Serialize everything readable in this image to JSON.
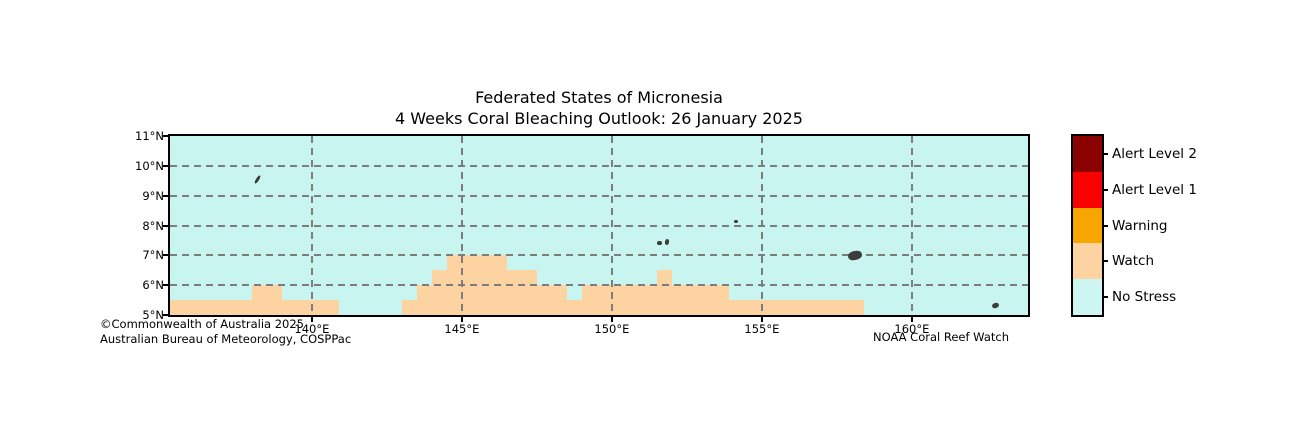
{
  "title": {
    "line1": "Federated States of Micronesia",
    "line2": "4 Weeks Coral Bleaching Outlook: 26 January 2025"
  },
  "credits": {
    "left_line1": "©Commonwealth of Australia 2025",
    "left_line2": "Australian Bureau of Meteorology, COSPPac",
    "right": "NOAA Coral Reef Watch"
  },
  "legend": {
    "items": [
      {
        "label": "Alert Level 2",
        "color": "#8b0000"
      },
      {
        "label": "Alert Level 1",
        "color": "#fa0000"
      },
      {
        "label": "Warning",
        "color": "#f7a600"
      },
      {
        "label": "Watch",
        "color": "#fcd3a1"
      },
      {
        "label": "No Stress",
        "color": "#cdf5f2"
      }
    ]
  },
  "map": {
    "y_ticks": [
      {
        "label": "11°N",
        "lat": 11
      },
      {
        "label": "10°N",
        "lat": 10
      },
      {
        "label": "9°N",
        "lat": 9
      },
      {
        "label": "8°N",
        "lat": 8
      },
      {
        "label": "7°N",
        "lat": 7
      },
      {
        "label": "6°N",
        "lat": 6
      },
      {
        "label": "5°N",
        "lat": 5
      }
    ],
    "x_ticks": [
      {
        "label": "140°E",
        "lon": 140
      },
      {
        "label": "145°E",
        "lon": 145
      },
      {
        "label": "150°E",
        "lon": 150
      },
      {
        "label": "155°E",
        "lon": 155
      },
      {
        "label": "160°E",
        "lon": 160
      }
    ]
  },
  "chart_data": {
    "type": "heatmap",
    "title": "Federated States of Micronesia — 4 Weeks Coral Bleaching Outlook: 26 January 2025",
    "lon_range": [
      135.27,
      163.87
    ],
    "lat_range": [
      5,
      11
    ],
    "grid_lon": [
      140,
      145,
      150,
      155,
      160
    ],
    "grid_lat": [
      6,
      7,
      8,
      9,
      10
    ],
    "ocean_color": "#c9f5f1",
    "grid_color": "#7d7d7d",
    "island_color": "#3c3c3c",
    "categories": [
      "Alert Level 2",
      "Alert Level 1",
      "Warning",
      "Watch",
      "No Stress"
    ],
    "watch_cells": [
      {
        "lat_min": 5.0,
        "lat_max": 5.5,
        "lon_min": 135.27,
        "lon_max": 140.9
      },
      {
        "lat_min": 5.0,
        "lat_max": 5.5,
        "lon_min": 143.0,
        "lon_max": 158.4
      },
      {
        "lat_min": 5.5,
        "lat_max": 6.0,
        "lon_min": 138.0,
        "lon_max": 139.0
      },
      {
        "lat_min": 5.5,
        "lat_max": 6.0,
        "lon_min": 143.5,
        "lon_max": 148.5
      },
      {
        "lat_min": 5.5,
        "lat_max": 6.0,
        "lon_min": 149.0,
        "lon_max": 153.9
      },
      {
        "lat_min": 6.0,
        "lat_max": 6.5,
        "lon_min": 144.0,
        "lon_max": 147.5
      },
      {
        "lat_min": 6.0,
        "lat_max": 6.5,
        "lon_min": 151.5,
        "lon_max": 152.0
      },
      {
        "lat_min": 6.5,
        "lat_max": 7.0,
        "lon_min": 144.5,
        "lon_max": 146.5
      }
    ],
    "islands": [
      {
        "name": "island-yap",
        "lon": 138.17,
        "lat": 9.53,
        "w": 3,
        "h": 9,
        "rot": 32
      },
      {
        "name": "island-oroluk",
        "lon": 154.13,
        "lat": 8.15,
        "w": 4,
        "h": 3,
        "rot": 0
      },
      {
        "name": "island-chuuk-a",
        "lon": 151.57,
        "lat": 7.4,
        "w": 5,
        "h": 4,
        "rot": 0
      },
      {
        "name": "island-chuuk-b",
        "lon": 151.83,
        "lat": 7.46,
        "w": 4,
        "h": 6,
        "rot": 10
      },
      {
        "name": "island-pohnpei",
        "lon": 158.1,
        "lat": 7.0,
        "w": 14,
        "h": 9,
        "rot": -12
      },
      {
        "name": "island-kosrae",
        "lon": 162.8,
        "lat": 5.33,
        "w": 7,
        "h": 5,
        "rot": -20
      }
    ]
  }
}
